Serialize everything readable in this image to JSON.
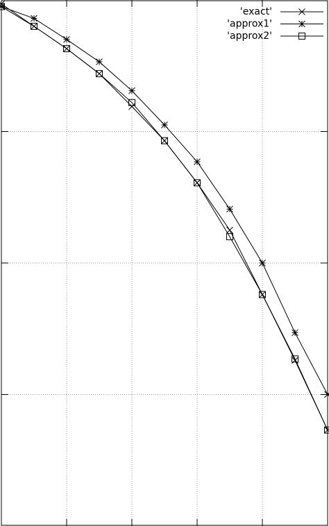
{
  "chart_data": {
    "type": "line",
    "x": [
      0,
      1,
      2,
      3,
      4,
      5,
      6,
      7,
      8,
      9,
      10
    ],
    "series": [
      {
        "name": "'exact'",
        "color": "#000000",
        "marker": "x",
        "values": [
          3.97,
          3.8,
          3.63,
          3.44,
          3.19,
          2.93,
          2.61,
          2.25,
          1.76,
          1.26,
          0.73
        ]
      },
      {
        "name": "'approx1'",
        "color": "#000000",
        "marker": "star",
        "values": [
          3.95,
          3.86,
          3.7,
          3.53,
          3.31,
          3.05,
          2.77,
          2.41,
          2.0,
          1.47,
          1.0
        ]
      },
      {
        "name": "'approx2'",
        "color": "#000000",
        "marker": "square",
        "values": [
          3.95,
          3.8,
          3.63,
          3.44,
          3.22,
          2.93,
          2.61,
          2.2,
          1.76,
          1.27,
          0.73
        ]
      }
    ],
    "xlim": [
      0,
      10
    ],
    "ylim": [
      0,
      4
    ],
    "xticks": [
      2,
      4,
      6,
      8
    ],
    "yticks": [
      1,
      2,
      3
    ],
    "grid": true,
    "legend": "upper right"
  }
}
